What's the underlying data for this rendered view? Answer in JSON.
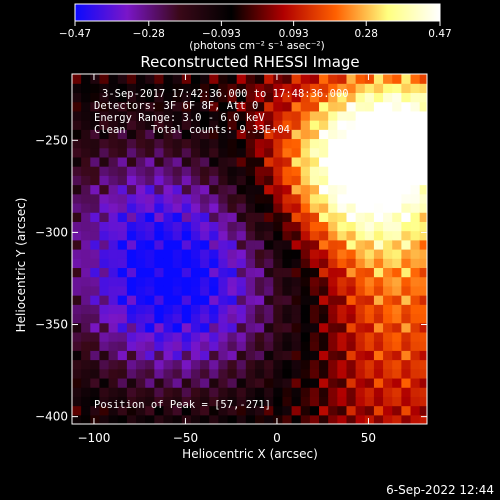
{
  "chart_data": {
    "type": "heatmap",
    "title": "Reconstructed RHESSI Image",
    "xlabel": "Heliocentric X (arcsec)",
    "ylabel": "Heliocentric Y (arcsec)",
    "xlim": [
      -112,
      82
    ],
    "ylim": [
      -404,
      -214
    ],
    "x_ticks": [
      -100,
      -50,
      0,
      50
    ],
    "x_tick_labels": [
      "−100",
      "−50",
      "0",
      "50"
    ],
    "y_ticks": [
      -250,
      -300,
      -350,
      -400
    ],
    "y_tick_labels": [
      "−250",
      "−300",
      "−350",
      "−400"
    ],
    "colorbar": {
      "min": -0.47,
      "max": 0.47,
      "ticks": [
        -0.47,
        -0.28,
        -0.093,
        0.093,
        0.28,
        0.47
      ],
      "tick_labels": [
        "−0.47",
        "−0.28",
        "−0.093",
        "0.093",
        "0.28",
        "0.47"
      ],
      "unit_label": "(photons cm⁻² s⁻¹ asec⁻²)"
    },
    "info_lines": [
      "3-Sep-2017 17:42:36.000 to 17:48:36.000",
      "Detectors: 3F 6F 8F, Att 0",
      "Energy Range: 3.0 - 6.0 keV",
      "Clean    Total counts: 9.33E+04"
    ],
    "peak_label": "Position of Peak = [57,-271]",
    "peak": [
      57,
      -271
    ],
    "sources": [
      {
        "x": 45,
        "y": -265,
        "amp": 0.5,
        "sx": 32,
        "sy": 30
      },
      {
        "x": 75,
        "y": -243,
        "amp": 0.3,
        "sx": 25,
        "sy": 20
      },
      {
        "x": 65,
        "y": -330,
        "amp": 0.2,
        "sx": 28,
        "sy": 55
      },
      {
        "x": -52,
        "y": -330,
        "amp": -0.42,
        "sx": 45,
        "sy": 45
      },
      {
        "x": -85,
        "y": -280,
        "amp": -0.15,
        "sx": 40,
        "sy": 50
      }
    ],
    "colormap": [
      "#0a0aff",
      "#7a16c8",
      "#3a0818",
      "#000000",
      "#b00000",
      "#ff6000",
      "#ffff80",
      "#ffffff"
    ]
  },
  "footer": {
    "date": "6-Sep-2022 12:44"
  }
}
